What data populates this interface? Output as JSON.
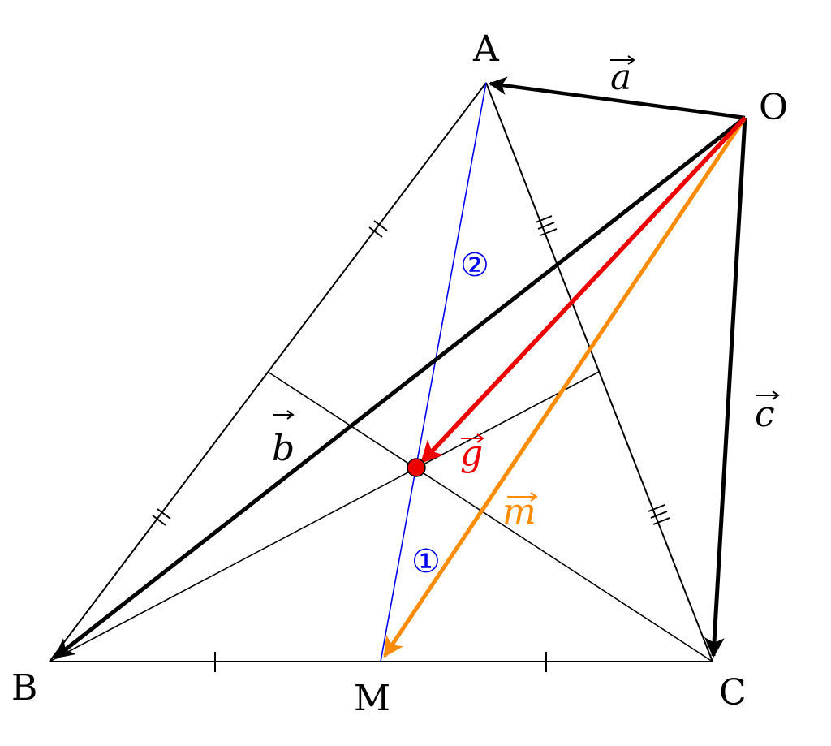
{
  "points": {
    "A": "A",
    "B": "B",
    "C": "C",
    "O": "O",
    "M": "M"
  },
  "vectors": {
    "a": "a",
    "b": "b",
    "c": "c",
    "g": "g",
    "m": "m"
  },
  "markers": {
    "one": "①",
    "two": "②"
  },
  "colors": {
    "black": "#000000",
    "red": "#ee0000",
    "orange": "#ff8c00",
    "blue": "#0000ee",
    "centroid_fill": "#ee0000"
  }
}
